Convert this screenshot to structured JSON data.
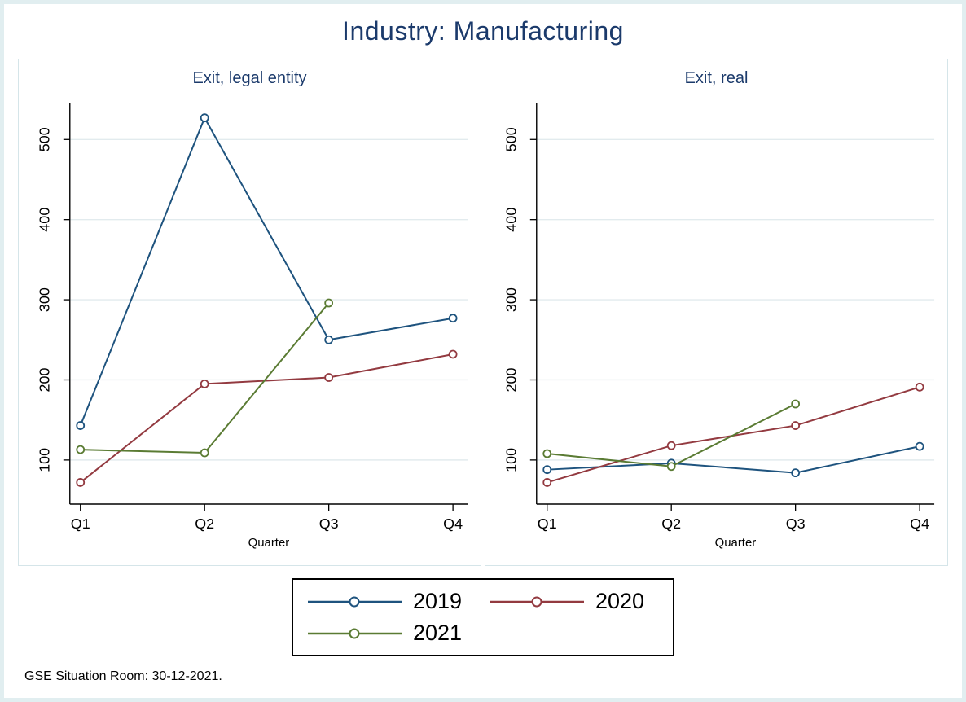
{
  "title": "Industry: Manufacturing",
  "note": "GSE Situation Room: 30-12-2021.",
  "colors": {
    "title_navy": "#1b3a6b",
    "axis": "#000000",
    "grid": "#e2ebee",
    "panel_border": "#d5e5e9",
    "figure_border": "#e1eef0",
    "background": "#ffffff"
  },
  "legend": {
    "entries": [
      {
        "label": "2019",
        "color": "#1e537e"
      },
      {
        "label": "2020",
        "color": "#933a40"
      },
      {
        "label": "2021",
        "color": "#5a7b33"
      }
    ]
  },
  "chart_data": [
    {
      "type": "line",
      "title": "Exit, legal entity",
      "xlabel": "Quarter",
      "categories": [
        "Q1",
        "Q2",
        "Q3",
        "Q4"
      ],
      "yticks": [
        100,
        200,
        300,
        400,
        500
      ],
      "ylim": [
        45,
        545
      ],
      "grid": true,
      "legend_position": "bottom shared",
      "series": [
        {
          "name": "2019",
          "values": [
            143,
            527,
            250,
            277
          ]
        },
        {
          "name": "2020",
          "values": [
            72,
            195,
            203,
            232
          ]
        },
        {
          "name": "2021",
          "values": [
            113,
            109,
            296,
            null
          ]
        }
      ]
    },
    {
      "type": "line",
      "title": "Exit, real",
      "xlabel": "Quarter",
      "categories": [
        "Q1",
        "Q2",
        "Q3",
        "Q4"
      ],
      "yticks": [
        100,
        200,
        300,
        400,
        500
      ],
      "ylim": [
        45,
        545
      ],
      "grid": true,
      "legend_position": "bottom shared",
      "series": [
        {
          "name": "2019",
          "values": [
            88,
            96,
            84,
            117
          ]
        },
        {
          "name": "2020",
          "values": [
            72,
            118,
            143,
            191
          ]
        },
        {
          "name": "2021",
          "values": [
            108,
            92,
            170,
            null
          ]
        }
      ]
    }
  ]
}
